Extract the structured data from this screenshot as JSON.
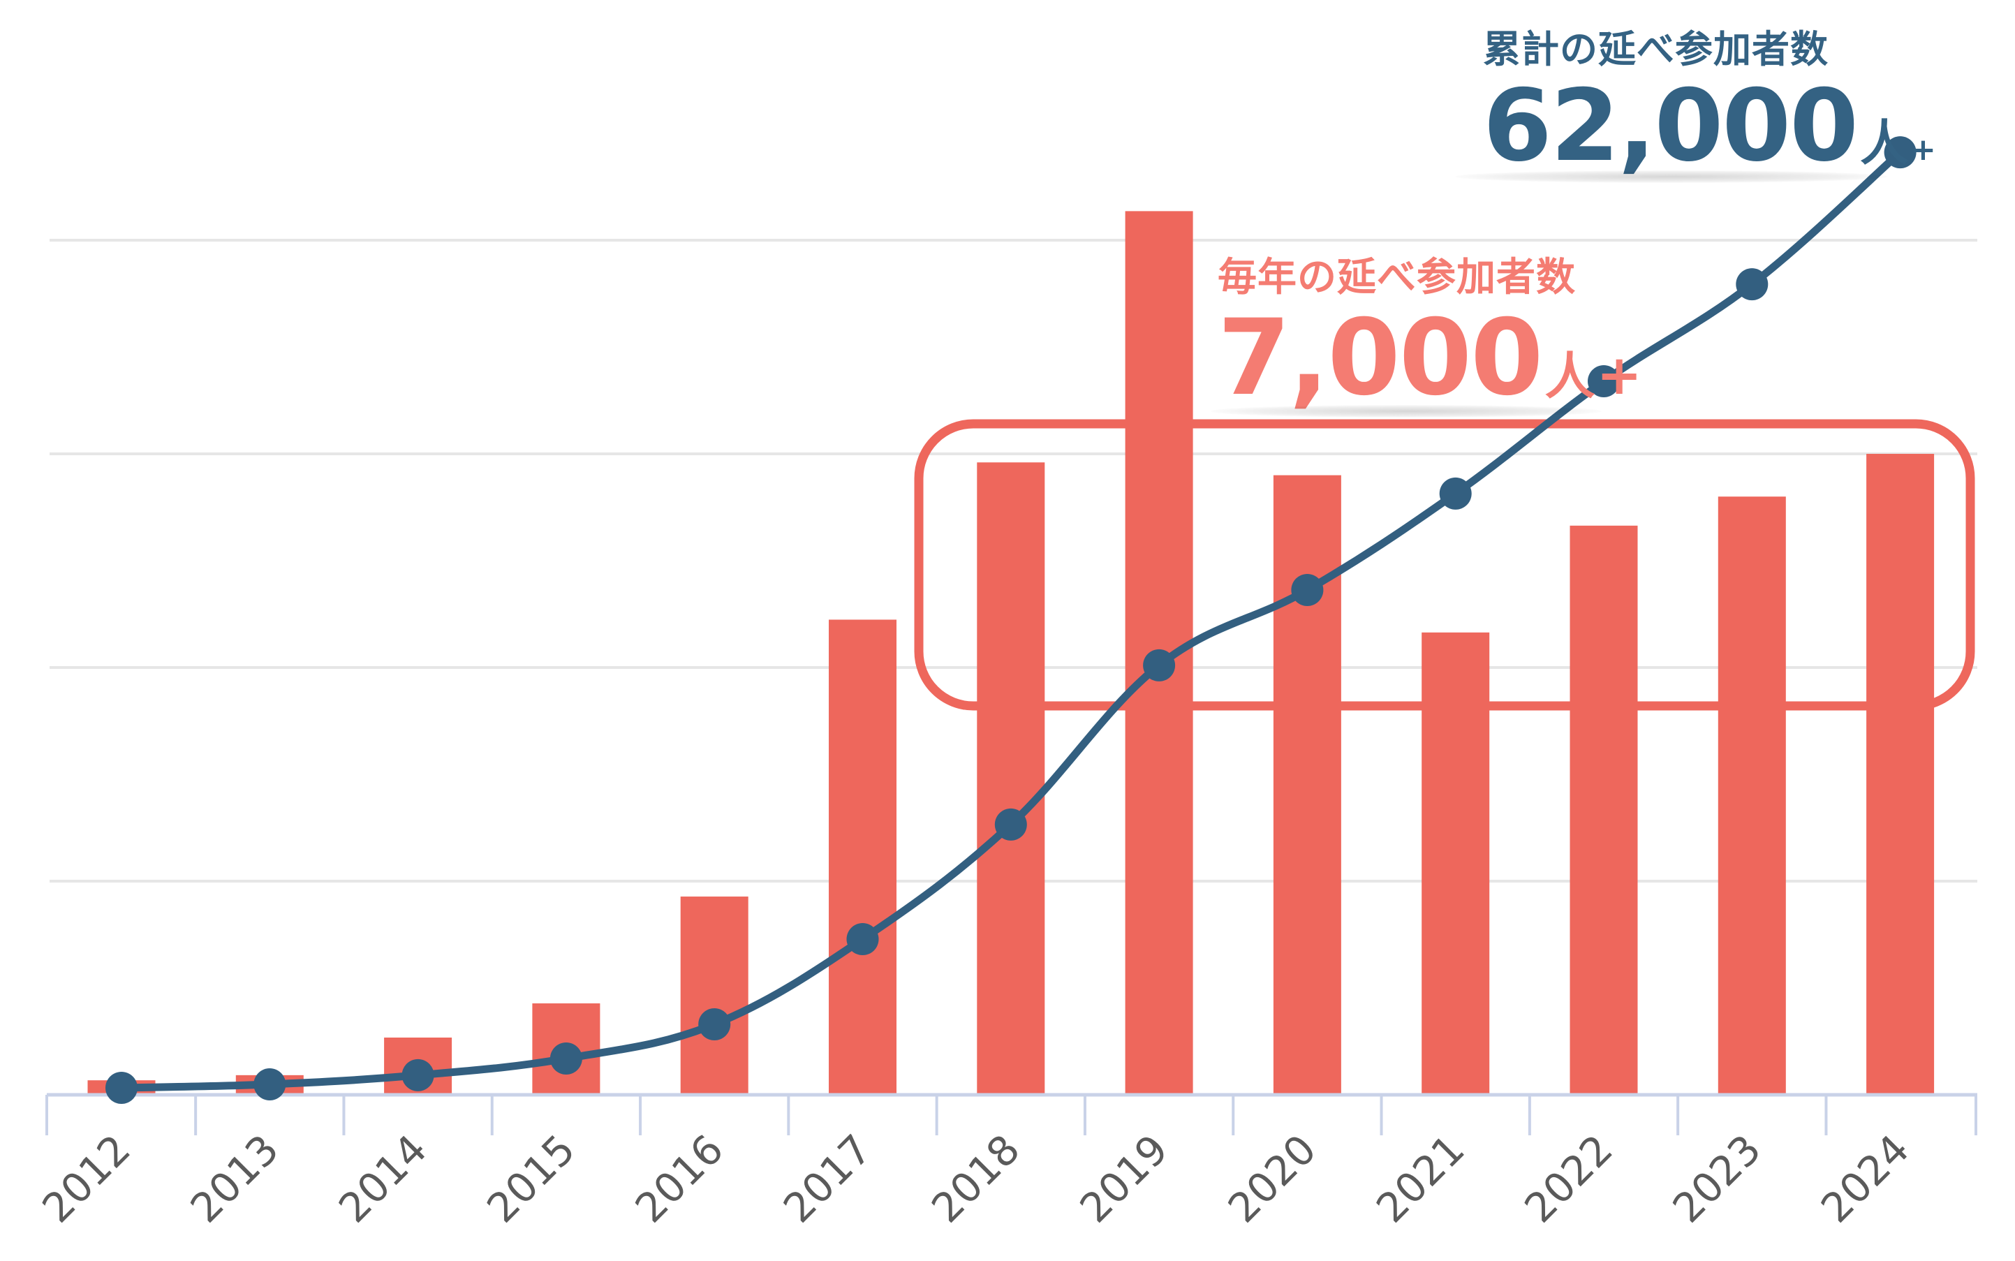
{
  "colors": {
    "bar": "#EE675C",
    "line": "#335F80",
    "highlight_box": "#EE675C",
    "gridline": "#E6E6E6",
    "axis": "#C9D2E8",
    "tick_label": "#5A5A5A",
    "total_text": "#346283",
    "annual_text": "#F47C72"
  },
  "callouts": {
    "total": {
      "title": "累計の延べ参加者数",
      "number": "62,000",
      "unit": "人",
      "plus": "+"
    },
    "annual": {
      "title": "毎年の延べ参加者数",
      "number": "7,000",
      "unit": "人",
      "plus": "+"
    }
  },
  "chart_data": {
    "type": "bar+line",
    "title": "",
    "xlabel": "",
    "ylabel": "",
    "categories": [
      "2012",
      "2013",
      "2014",
      "2015",
      "2016",
      "2017",
      "2018",
      "2019",
      "2020",
      "2021",
      "2022",
      "2023",
      "2024"
    ],
    "series": [
      {
        "name": "毎年の延べ参加者数",
        "type": "bar",
        "axis": "left",
        "values": [
          170,
          230,
          670,
          1070,
          2320,
          5560,
          7400,
          10340,
          7250,
          5410,
          6660,
          7000,
          7500
        ]
      },
      {
        "name": "累計の延べ参加者数",
        "type": "line",
        "axis": "right",
        "values": [
          460,
          690,
          1290,
          2390,
          4640,
          10240,
          17780,
          28250,
          33210,
          39550,
          46940,
          53320,
          62000
        ]
      }
    ],
    "bar_ylim": [
      0,
      12500
    ],
    "line_ylim": [
      0,
      70000
    ],
    "grid": true,
    "gridlines_bar_units": [
      2500,
      5000,
      7500,
      10000
    ],
    "y_tick_labels_visible": false,
    "x_tick_rotation": -45,
    "highlight": {
      "label": "毎年の延べ参加者数 7,000人+",
      "from": "2018",
      "to": "2024"
    },
    "annotations": [
      "累計の延べ参加者数 62,000人+",
      "毎年の延べ参加者数 7,000人+"
    ]
  }
}
